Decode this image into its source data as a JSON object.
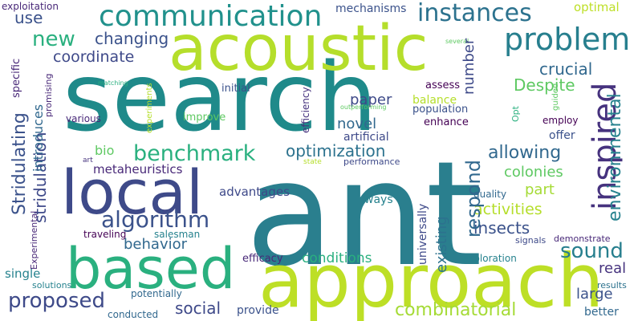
{
  "wordcloud": {
    "words": {
      "search": "search",
      "ant": "ant",
      "acoustic": "acoustic",
      "approach": "approach",
      "local": "local",
      "based": "based",
      "communication": "communication",
      "instances": "instances",
      "problem": "problem",
      "inspired": "inspired",
      "new": "new",
      "changing": "changing",
      "coordinate": "coordinate",
      "crucial": "crucial",
      "despite": "Despite",
      "use": "use",
      "optimal": "optimal",
      "mechanisms": "mechanisms",
      "exploitation": "exploitation",
      "benchmark": "benchmark",
      "optimization": "optimization",
      "allowing": "allowing",
      "algorithm": "algorithm",
      "metaheuristics": "metaheuristics",
      "bio": "bio",
      "paper": "paper",
      "novel": "novel",
      "balance": "balance",
      "enhance": "enhance",
      "population": "population",
      "assess": "assess",
      "artificial": "artificial",
      "performance": "performance",
      "colonies": "colonies",
      "part": "part",
      "activities": "activities",
      "insects": "insects",
      "sound": "sound",
      "real": "real",
      "large": "large",
      "results": "results",
      "better": "better",
      "combinatorial": "combinatorial",
      "conditions": "conditions",
      "ways": "ways",
      "quality": "quality",
      "demonstrate": "demonstrate",
      "signals": "signals",
      "exploration": "exploration",
      "offer": "offer",
      "employ": "employ",
      "advantages": "advantages",
      "behavior": "behavior",
      "proposed": "proposed",
      "social": "social",
      "potentially": "potentially",
      "provide": "provide",
      "efficacy": "efficacy",
      "conducted": "conducted",
      "solutions": "solutions",
      "single": "single",
      "traveling": "traveling",
      "salesman": "salesman",
      "various": "various",
      "improve": "improve",
      "initial": "initial",
      "matching": "matching",
      "several": "several",
      "outperforming": "outperforming",
      "art": "art",
      "state": "state",
      "environmental": "environmental",
      "respond": "respond",
      "existing": "existing",
      "universally": "universally",
      "number": "number",
      "stridulation": "stridulation",
      "stridulating": "Stridulating",
      "introduces": "introduces",
      "specific": "specific",
      "promising": "promising",
      "experiments": "experiments",
      "efficiency": "efficiency",
      "guided": "guided",
      "opt": "Opt",
      "experimental": "Experimental"
    }
  }
}
